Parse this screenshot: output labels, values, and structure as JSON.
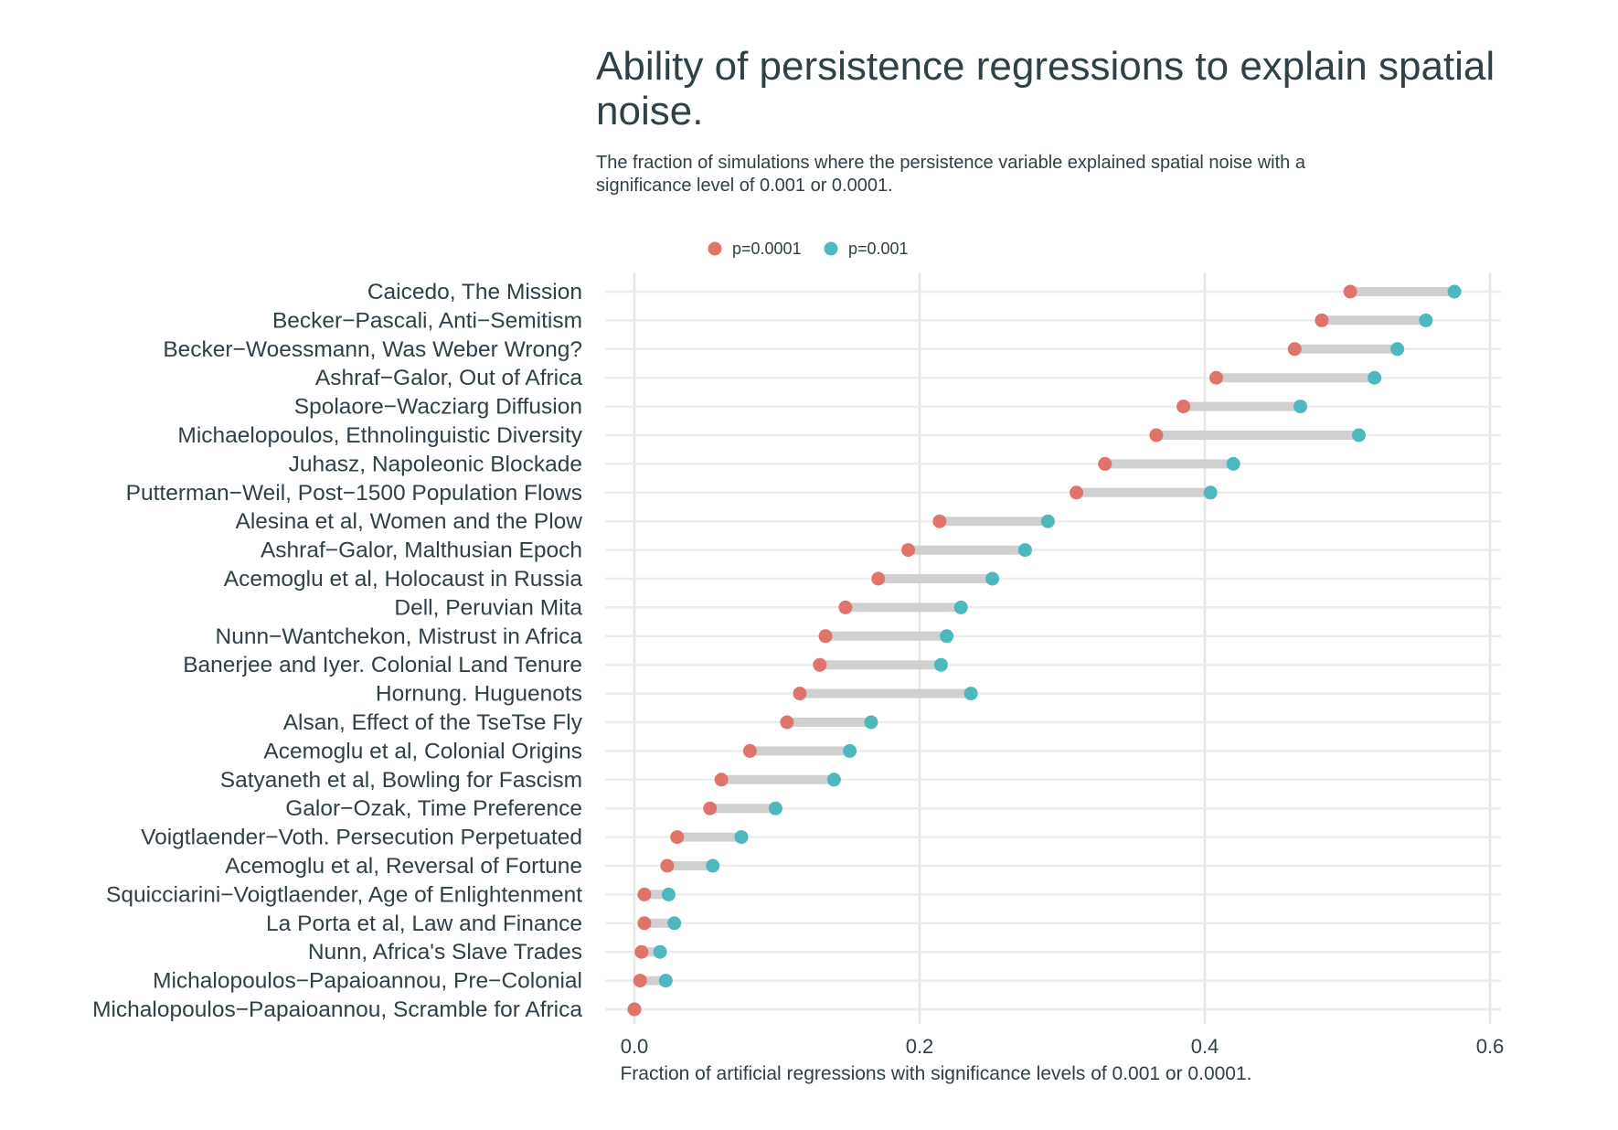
{
  "chart_data": {
    "type": "dumbbell",
    "title": "Ability of persistence regressions to explain spatial noise.",
    "subtitle": "The fraction of simulations where the persistence variable explained spatial noise with a significance level of 0.001 or 0.0001.",
    "xlabel": "Fraction of artificial regressions with significance levels of 0.001 or 0.0001.",
    "ylabel": "",
    "xlim": [
      -0.02,
      0.61
    ],
    "xticks": [
      0.0,
      0.2,
      0.4,
      0.6
    ],
    "xtick_labels": [
      "0.0",
      "0.2",
      "0.4",
      "0.6"
    ],
    "grid": true,
    "legend_position": "top",
    "series": [
      {
        "name": "p=0.0001",
        "color": "#e0736a"
      },
      {
        "name": "p=0.001",
        "color": "#4db8bd"
      }
    ],
    "connector_color": "#d0d0d0",
    "categories": [
      "Caicedo, The Mission",
      "Becker−Pascali, Anti−Semitism",
      "Becker−Woessmann, Was Weber Wrong?",
      "Ashraf−Galor, Out of Africa",
      "Spolaore−Wacziarg Diffusion",
      "Michaelopoulos, Ethnolinguistic Diversity",
      "Juhasz, Napoleonic Blockade",
      "Putterman−Weil, Post−1500 Population Flows",
      "Alesina et al, Women and the Plow",
      "Ashraf−Galor, Malthusian Epoch",
      "Acemoglu et al, Holocaust in Russia",
      "Dell, Peruvian Mita",
      "Nunn−Wantchekon, Mistrust in Africa",
      "Banerjee and Iyer. Colonial Land Tenure",
      "Hornung. Huguenots",
      "Alsan, Effect of the TseTse Fly",
      "Acemoglu et al, Colonial Origins",
      "Satyaneth et al, Bowling for Fascism",
      "Galor−Ozak, Time Preference",
      "Voigtlaender−Voth. Persecution Perpetuated",
      "Acemoglu et al, Reversal of Fortune",
      "Squicciarini−Voigtlaender, Age of Enlightenment",
      "La Porta et al, Law and Finance",
      "Nunn, Africa's Slave Trades",
      "Michalopoulos−Papaioannou, Pre−Colonial",
      "Michalopoulos−Papaioannou, Scramble for Africa"
    ],
    "p0001": [
      0.502,
      0.482,
      0.463,
      0.408,
      0.385,
      0.366,
      0.33,
      0.31,
      0.214,
      0.192,
      0.171,
      0.148,
      0.134,
      0.13,
      0.116,
      0.107,
      0.081,
      0.061,
      0.053,
      0.03,
      0.023,
      0.007,
      0.007,
      0.005,
      0.004,
      0.0
    ],
    "p001": [
      0.575,
      0.555,
      0.535,
      0.519,
      0.467,
      0.508,
      0.42,
      0.404,
      0.29,
      0.274,
      0.251,
      0.229,
      0.219,
      0.215,
      0.236,
      0.166,
      0.151,
      0.14,
      0.099,
      0.075,
      0.055,
      0.024,
      0.028,
      0.018,
      0.022,
      0.0
    ]
  }
}
